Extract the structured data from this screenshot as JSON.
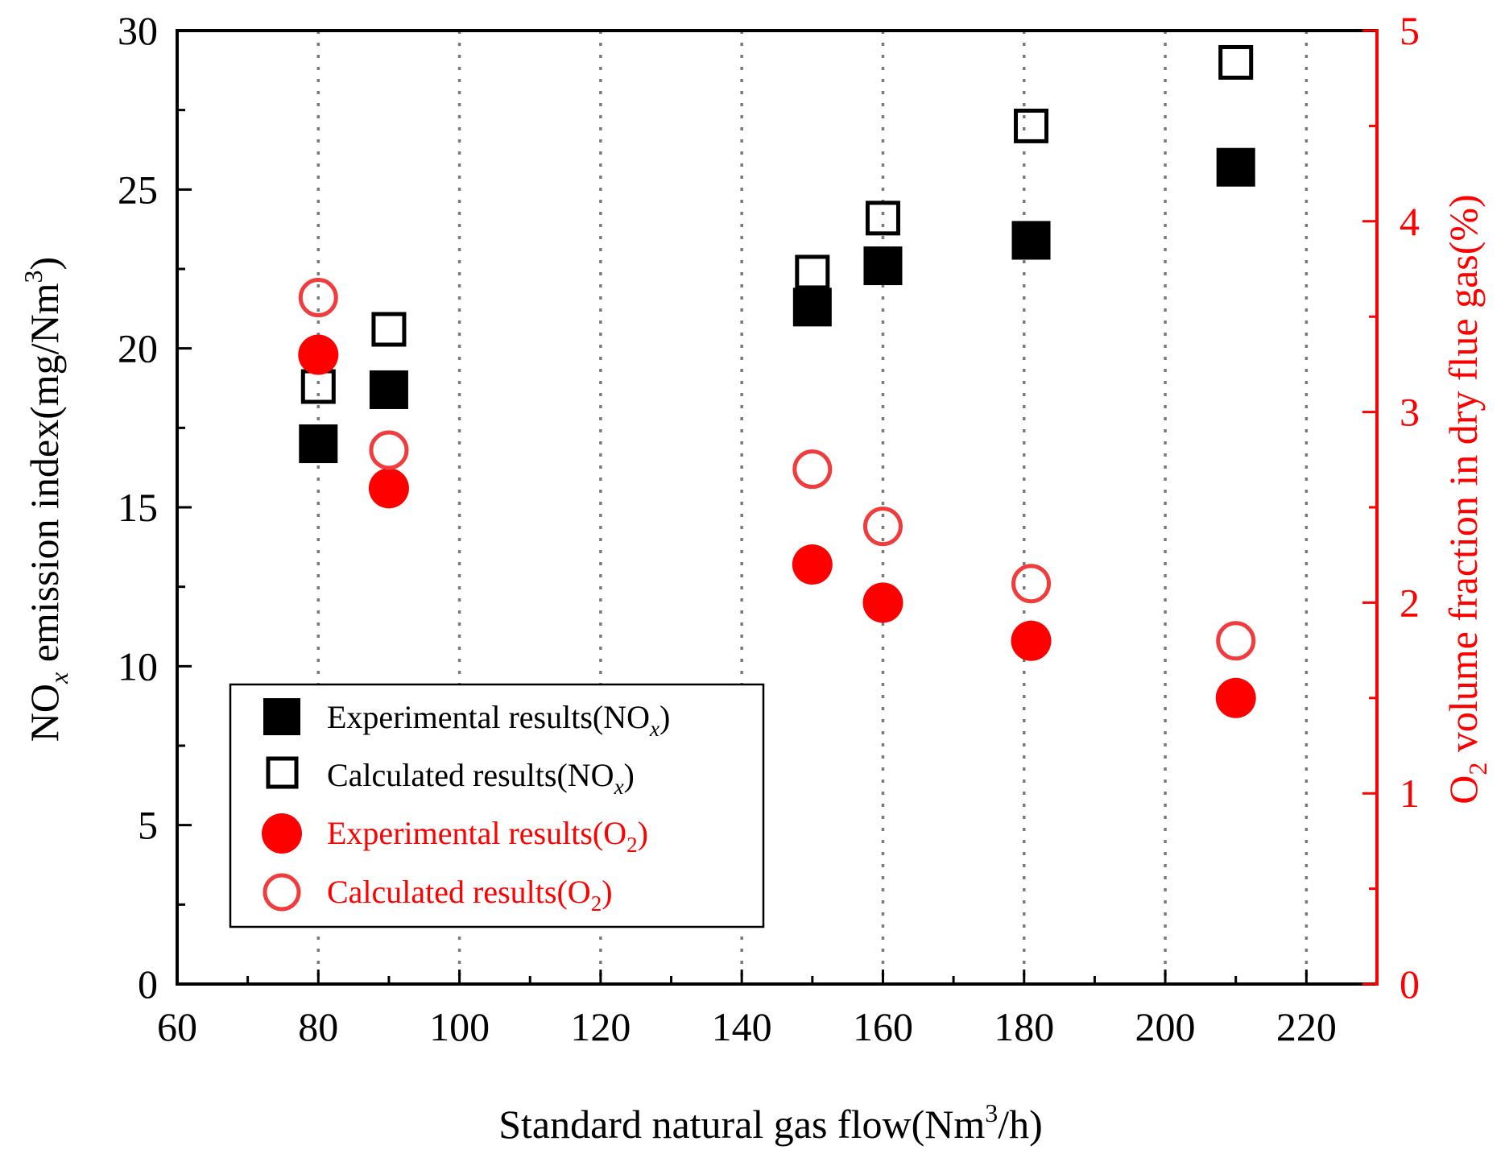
{
  "chart_data": {
    "type": "scatter",
    "title": "",
    "xlabel": {
      "pre": "Standard natural gas flow(Nm",
      "sup": "3",
      "post": "/h)"
    },
    "ylabel_left": {
      "pre": "NO",
      "sub": "x",
      "mid": " emission index(mg/Nm",
      "sup": "3",
      "post": ")"
    },
    "ylabel_right": {
      "pre": "O",
      "sub": "2",
      "post": " volume fraction in dry flue gas(%)"
    },
    "xlim": [
      60,
      230
    ],
    "ylim_left": [
      0,
      30
    ],
    "ylim_right": [
      0,
      5
    ],
    "xticks": [
      "60",
      "80",
      "100",
      "120",
      "140",
      "160",
      "180",
      "200",
      "220"
    ],
    "yticks_left": [
      "0",
      "5",
      "10",
      "15",
      "20",
      "25",
      "30"
    ],
    "yticks_right": [
      "0",
      "1",
      "2",
      "3",
      "4",
      "5"
    ],
    "grid": "vertical dotted lines at major x ticks",
    "colors": {
      "nox": "#000000",
      "o2_experimental": "#ff0000",
      "o2_calculated": "#f03c3c",
      "right_axis": "#ff0000"
    },
    "series": [
      {
        "name": "Experimental results(NOx)",
        "label_main": "Experimental results(NO",
        "label_sub": "x",
        "label_end": ")",
        "axis": "left",
        "marker": "filled-square",
        "x": [
          80,
          90,
          150,
          160,
          181,
          210
        ],
        "y": [
          17.0,
          18.7,
          21.3,
          22.6,
          23.4,
          25.7
        ]
      },
      {
        "name": "Calculated results(NOx)",
        "label_main": "Calculated results(NO",
        "label_sub": "x",
        "label_end": ")",
        "axis": "left",
        "marker": "open-square",
        "x": [
          80,
          90,
          150,
          160,
          181,
          210
        ],
        "y": [
          18.8,
          20.6,
          22.4,
          24.1,
          27.0,
          29.0
        ]
      },
      {
        "name": "Experimental results(O2)",
        "label_main": "Experimental results(O",
        "label_sub": "2",
        "label_end": ")",
        "axis": "right",
        "marker": "filled-circle",
        "x": [
          80,
          90,
          150,
          160,
          181,
          210
        ],
        "y": [
          3.3,
          2.6,
          2.2,
          2.0,
          1.8,
          1.5
        ]
      },
      {
        "name": "Calculated results(O2)",
        "label_main": "Calculated results(O",
        "label_sub": "2",
        "label_end": ")",
        "axis": "right",
        "marker": "open-circle",
        "x": [
          80,
          90,
          150,
          160,
          181,
          210
        ],
        "y": [
          3.6,
          2.8,
          2.7,
          2.4,
          2.1,
          1.8
        ]
      }
    ],
    "legend": "lower-left inside plot"
  }
}
